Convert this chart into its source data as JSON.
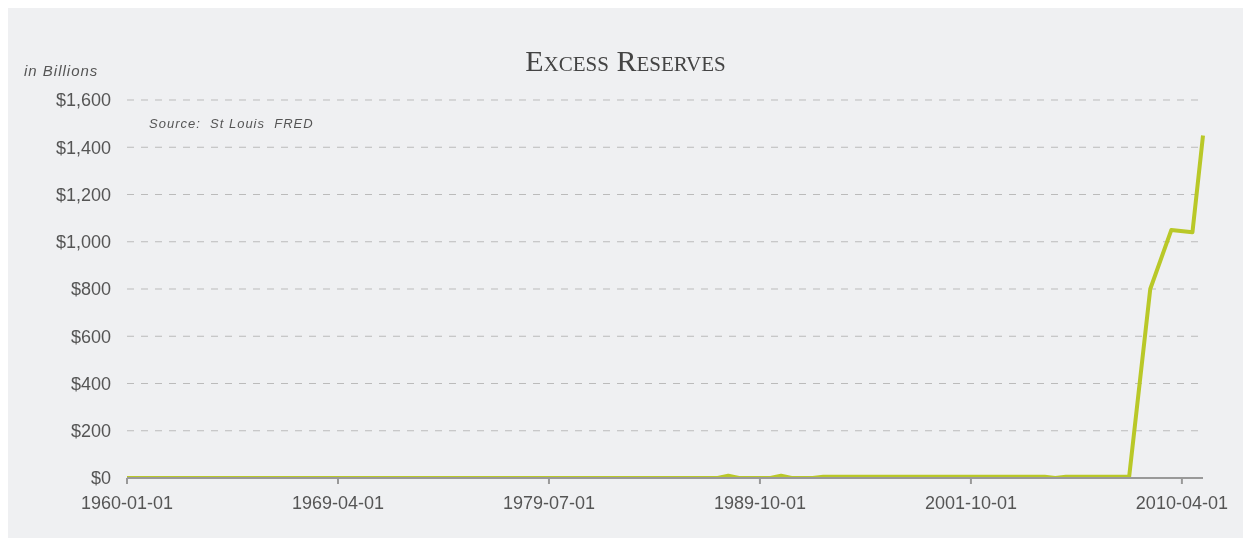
{
  "chart_data": {
    "type": "line",
    "title": "Excess Reserves",
    "ylabel": "in Billions",
    "annotations": [
      "Source:  St Louis  FRED"
    ],
    "categories": [
      "1960-01-01",
      null,
      null,
      null,
      null,
      null,
      null,
      null,
      null,
      null,
      null,
      null,
      null,
      null,
      null,
      null,
      null,
      null,
      null,
      null,
      "1969-04-01",
      null,
      null,
      null,
      null,
      null,
      null,
      null,
      null,
      null,
      null,
      null,
      null,
      null,
      null,
      null,
      null,
      null,
      null,
      null,
      "1979-07-01",
      null,
      null,
      null,
      null,
      null,
      null,
      null,
      null,
      null,
      null,
      null,
      null,
      null,
      null,
      null,
      null,
      null,
      null,
      null,
      "1989-10-01",
      null,
      null,
      null,
      null,
      null,
      null,
      null,
      null,
      null,
      null,
      null,
      null,
      null,
      null,
      null,
      null,
      null,
      null,
      null,
      "2001-10-01",
      null,
      null,
      null,
      null,
      null,
      null,
      null,
      null,
      null,
      null,
      null,
      null,
      null,
      null,
      null,
      null,
      null,
      null,
      null,
      "2010-04-01",
      null,
      null
    ],
    "series": [
      {
        "color": "#b9c828",
        "values": [
          0,
          0,
          0,
          0,
          0,
          0,
          0,
          0,
          0,
          0,
          0,
          0,
          0,
          0,
          0,
          0,
          0,
          0,
          0,
          0,
          0,
          0,
          0,
          0,
          0,
          0,
          0,
          0,
          0,
          0,
          0,
          0,
          0,
          0,
          0,
          0,
          0,
          0,
          0,
          0,
          0,
          0,
          0,
          0,
          0,
          0,
          0,
          0,
          0,
          0,
          0,
          0,
          0,
          0,
          0,
          0,
          0,
          10,
          0,
          0,
          0,
          0,
          10,
          0,
          0,
          0,
          5,
          5,
          5,
          5,
          5,
          5,
          5,
          5,
          5,
          5,
          5,
          5,
          5,
          5,
          5,
          5,
          5,
          5,
          5,
          5,
          5,
          5,
          0,
          5,
          5,
          5,
          5,
          5,
          5,
          5,
          null,
          800,
          null,
          1050,
          null,
          1040,
          1450
        ]
      }
    ],
    "ylim": [
      0,
      1600
    ],
    "yticks": [
      {
        "value": 0,
        "label": "$0"
      },
      {
        "value": 200,
        "label": "$200"
      },
      {
        "value": 400,
        "label": "$400"
      },
      {
        "value": 600,
        "label": "$600"
      },
      {
        "value": 800,
        "label": "$800"
      },
      {
        "value": 1000,
        "label": "$1,000"
      },
      {
        "value": 1200,
        "label": "$1,200"
      },
      {
        "value": 1400,
        "label": "$1,400"
      },
      {
        "value": 1600,
        "label": "$1,600"
      }
    ],
    "grid": "y",
    "marker": "none",
    "line_style": "solid"
  }
}
